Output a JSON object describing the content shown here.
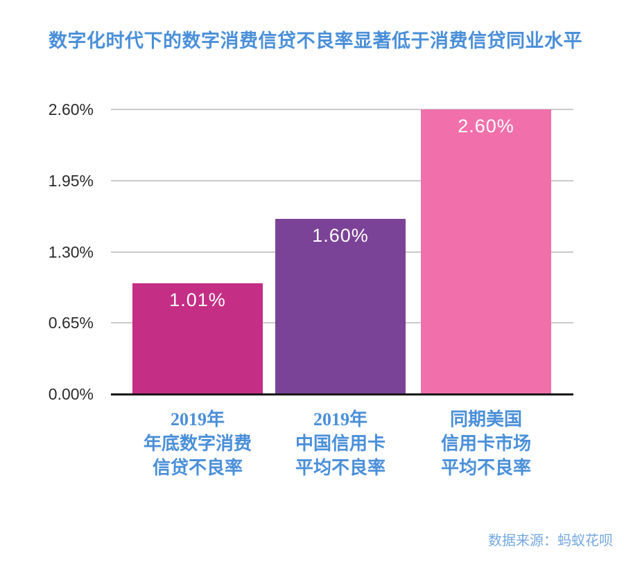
{
  "title": "数字化时代下的数字消费信贷不良率显著低于消费信贷同业水平",
  "source_note": "数据来源：蚂蚁花呗",
  "colors": {
    "title_blue": "#4A8FD9",
    "label_blue": "#4A8FD9",
    "source_blue": "#74A7DF",
    "tick_text": "#2B2B2B",
    "gridline": "#C9C9C9",
    "axis": "#161616",
    "bar_label_text": "#FFFFFF"
  },
  "chart_data": {
    "type": "bar",
    "title": "数字化时代下的数字消费信贷不良率显著低于消费信贷同业水平",
    "categories": [
      [
        "2019年",
        "年底数字消费",
        "信贷不良率"
      ],
      [
        "2019年",
        "中国信用卡",
        "平均不良率"
      ],
      [
        "同期美国",
        "信用卡市场",
        "平均不良率"
      ]
    ],
    "values": [
      1.01,
      1.6,
      2.6
    ],
    "value_labels": [
      "1.01%",
      "1.60%",
      "2.60%"
    ],
    "bar_colors": [
      "#C42E85",
      "#7B4397",
      "#F170AC"
    ],
    "yticks": [
      0,
      0.65,
      1.3,
      1.95,
      2.6
    ],
    "ytick_labels": [
      "0.00%",
      "0.65%",
      "1.30%",
      "1.95%",
      "2.60%"
    ],
    "ylim": [
      0,
      2.6
    ],
    "xlabel": "",
    "ylabel": "",
    "grid": true,
    "legend": false,
    "source": "数据来源：蚂蚁花呗"
  }
}
